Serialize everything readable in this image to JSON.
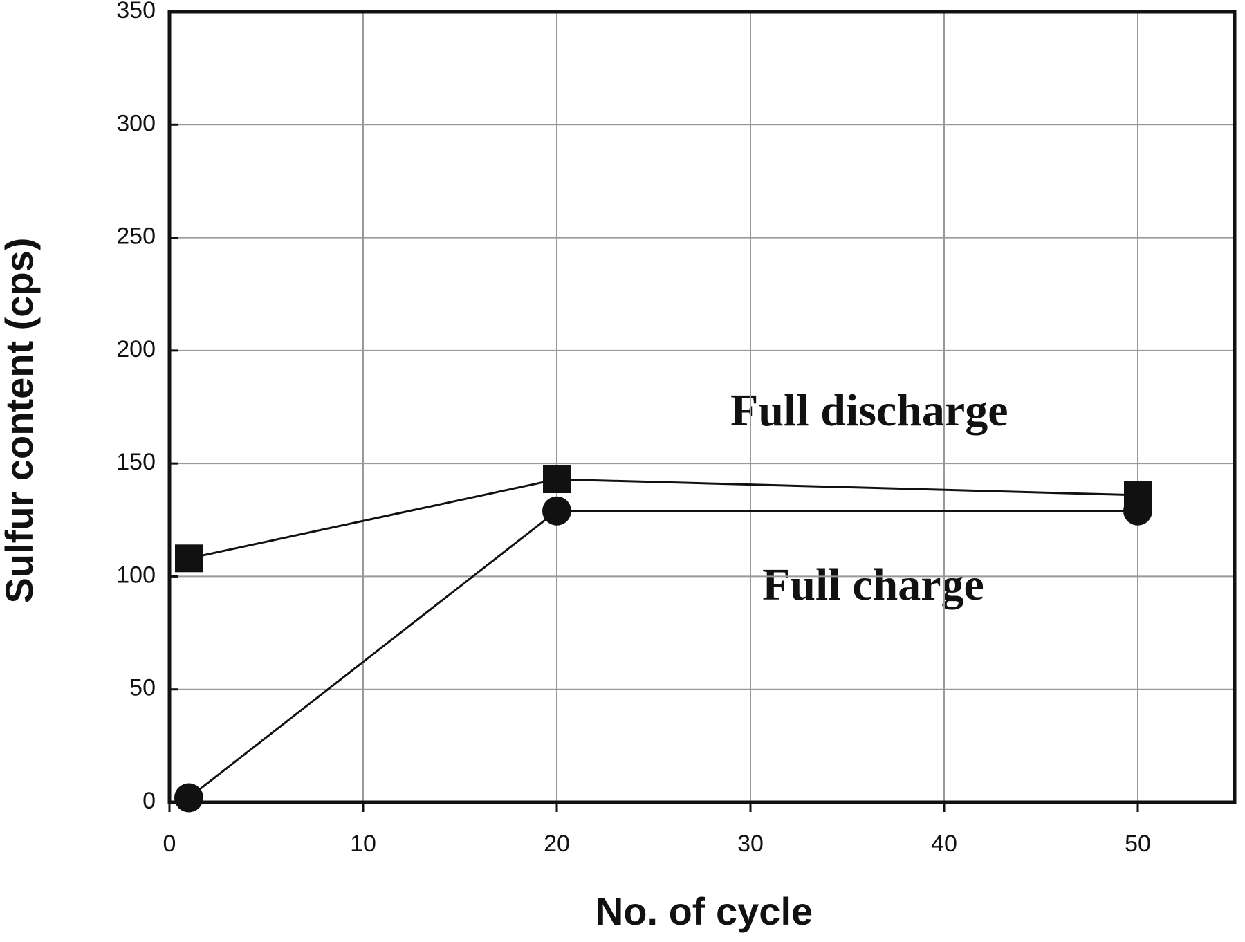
{
  "chart_data": {
    "type": "line",
    "x_label": "No. of cycle",
    "y_label": "Sulfur content (cps)",
    "xlim": [
      0,
      55
    ],
    "xticks": [
      0,
      10,
      20,
      30,
      40,
      50
    ],
    "ylim": [
      0,
      350
    ],
    "yticks": [
      0,
      50,
      100,
      150,
      200,
      250,
      300,
      350
    ],
    "grid": true,
    "x": [
      1,
      20,
      50
    ],
    "series": [
      {
        "name": "Full discharge",
        "color": "#111111",
        "marker": "square",
        "values": [
          108,
          143,
          136
        ]
      },
      {
        "name": "Full charge",
        "color": "#111111",
        "marker": "circle",
        "values": [
          2,
          129,
          129
        ]
      }
    ]
  }
}
